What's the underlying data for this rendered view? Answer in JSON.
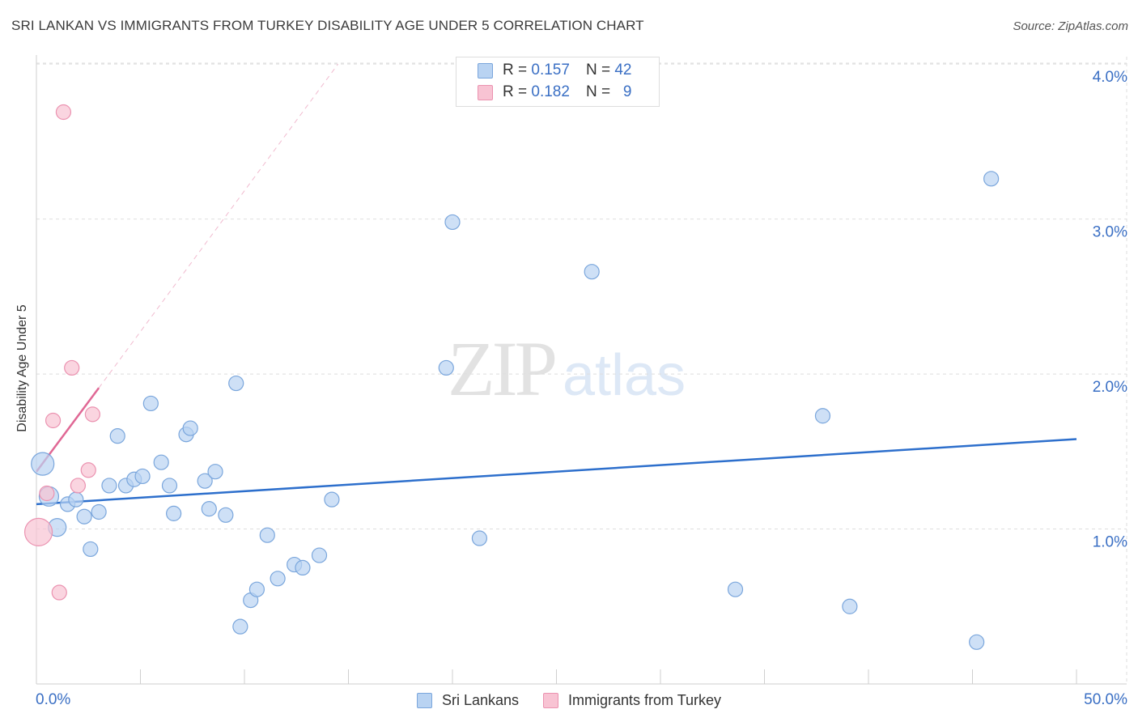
{
  "title": "SRI LANKAN VS IMMIGRANTS FROM TURKEY DISABILITY AGE UNDER 5 CORRELATION CHART",
  "source": "Source: ZipAtlas.com",
  "watermark": {
    "zip": "ZIP",
    "atlas": "atlas"
  },
  "colors": {
    "blue_fill": "#b9d3f2",
    "blue_stroke": "#7aa6dc",
    "blue_line": "#2d6fcc",
    "pink_fill": "#f8c3d3",
    "pink_stroke": "#eb92b0",
    "pink_line": "#e06895",
    "grid": "#dedede",
    "tick_label": "#3a6fc4"
  },
  "legend_top": [
    {
      "r_label": "R = ",
      "r_value": "0.157",
      "n_label": "N = ",
      "n_value": "42"
    },
    {
      "r_label": "R = ",
      "r_value": "0.182",
      "n_label": "N = ",
      "n_value": "9"
    }
  ],
  "legend_bottom": [
    "Sri Lankans",
    "Immigrants from Turkey"
  ],
  "chart_data": {
    "type": "scatter",
    "title": "SRI LANKAN VS IMMIGRANTS FROM TURKEY DISABILITY AGE UNDER 5 CORRELATION CHART",
    "xlabel": "",
    "ylabel": "Disability Age Under 5",
    "xlim": [
      0,
      50
    ],
    "ylim": [
      0,
      4.1
    ],
    "x_tick_labels": [
      "0.0%",
      "50.0%"
    ],
    "y_ticks": [
      1,
      2,
      3,
      4
    ],
    "y_tick_labels": [
      "1.0%",
      "2.0%",
      "3.0%",
      "4.0%"
    ],
    "grid": true,
    "legend": "top-center",
    "series": [
      {
        "name": "Sri Lankans",
        "r": 0.157,
        "n": 42,
        "points": [
          [
            0.3,
            1.42,
            14
          ],
          [
            0.6,
            1.21,
            12
          ],
          [
            1.0,
            1.01,
            11
          ],
          [
            1.5,
            1.16,
            9
          ],
          [
            1.9,
            1.19,
            9
          ],
          [
            2.3,
            1.08,
            9
          ],
          [
            2.6,
            0.87,
            9
          ],
          [
            3.0,
            1.11,
            9
          ],
          [
            3.5,
            1.28,
            9
          ],
          [
            3.9,
            1.6,
            9
          ],
          [
            4.3,
            1.28,
            9
          ],
          [
            4.7,
            1.32,
            9
          ],
          [
            5.1,
            1.34,
            9
          ],
          [
            5.5,
            1.81,
            9
          ],
          [
            6.0,
            1.43,
            9
          ],
          [
            6.4,
            1.28,
            9
          ],
          [
            6.6,
            1.1,
            9
          ],
          [
            7.2,
            1.61,
            9
          ],
          [
            7.4,
            1.65,
            9
          ],
          [
            8.1,
            1.31,
            9
          ],
          [
            8.3,
            1.13,
            9
          ],
          [
            8.6,
            1.37,
            9
          ],
          [
            9.1,
            1.09,
            9
          ],
          [
            9.6,
            1.94,
            9
          ],
          [
            9.8,
            0.37,
            9
          ],
          [
            10.3,
            0.54,
            9
          ],
          [
            10.6,
            0.61,
            9
          ],
          [
            11.1,
            0.96,
            9
          ],
          [
            11.6,
            0.68,
            9
          ],
          [
            12.4,
            0.77,
            9
          ],
          [
            12.8,
            0.75,
            9
          ],
          [
            13.6,
            0.83,
            9
          ],
          [
            14.2,
            1.19,
            9
          ],
          [
            19.7,
            2.04,
            9
          ],
          [
            20.0,
            2.98,
            9
          ],
          [
            21.3,
            0.94,
            9
          ],
          [
            26.7,
            2.66,
            9
          ],
          [
            33.6,
            0.61,
            9
          ],
          [
            37.8,
            1.73,
            9
          ],
          [
            39.1,
            0.5,
            9
          ],
          [
            45.2,
            0.27,
            9
          ],
          [
            45.9,
            3.26,
            9
          ]
        ],
        "trend": {
          "x": [
            0,
            50
          ],
          "y": [
            1.16,
            1.58
          ]
        }
      },
      {
        "name": "Immigrants from Turkey",
        "r": 0.182,
        "n": 9,
        "points": [
          [
            0.1,
            0.98,
            17
          ],
          [
            0.5,
            1.23,
            9
          ],
          [
            0.8,
            1.7,
            9
          ],
          [
            1.1,
            0.59,
            9
          ],
          [
            1.3,
            3.69,
            9
          ],
          [
            1.7,
            2.04,
            9
          ],
          [
            2.0,
            1.28,
            9
          ],
          [
            2.5,
            1.38,
            9
          ],
          [
            2.7,
            1.74,
            9
          ]
        ],
        "trend": {
          "x": [
            0,
            3.0
          ],
          "y": [
            1.37,
            1.91
          ]
        },
        "trend_extension": {
          "x": [
            3.0,
            14.5
          ],
          "y": [
            1.91,
            4.0
          ]
        }
      }
    ]
  }
}
